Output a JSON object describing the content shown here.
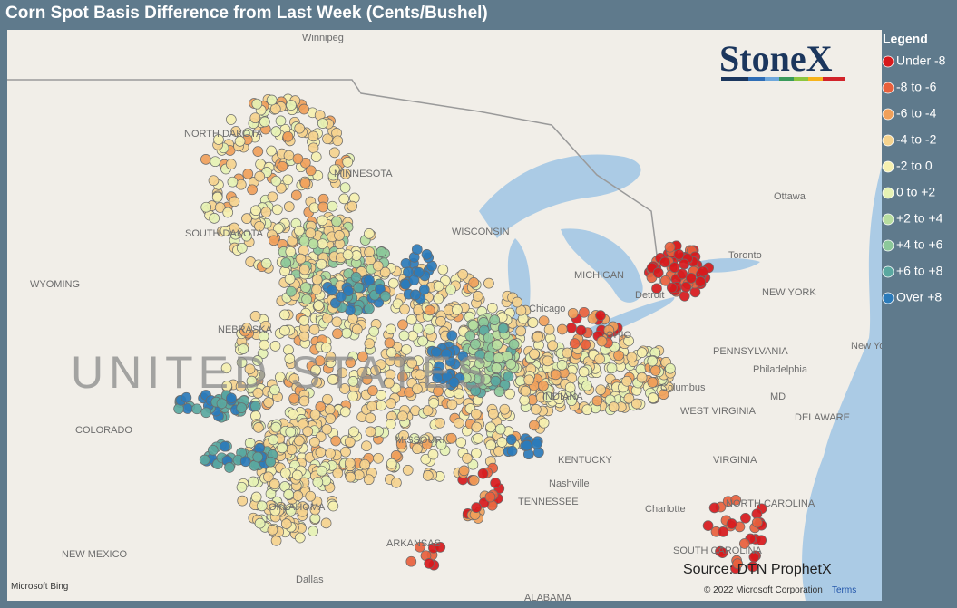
{
  "title": "Corn Spot Basis Difference from Last Week (Cents/Bushel)",
  "legend": {
    "title": "Legend",
    "items": [
      {
        "label": "Under -8",
        "color": "#d7191c"
      },
      {
        "label": "-8 to -6",
        "color": "#e8603c"
      },
      {
        "label": "-6 to -4",
        "color": "#f0a05a"
      },
      {
        "label": "-4 to -2",
        "color": "#f5d38e"
      },
      {
        "label": "-2 to 0",
        "color": "#f5f0b0"
      },
      {
        "label": "0 to +2",
        "color": "#e6f2b4"
      },
      {
        "label": "+2 to +4",
        "color": "#b8dea0"
      },
      {
        "label": "+4 to +6",
        "color": "#8cc89a"
      },
      {
        "label": "+6 to +8",
        "color": "#5aa8a0"
      },
      {
        "label": "Over +8",
        "color": "#2b7bba"
      }
    ]
  },
  "logo": "StoneX",
  "source": "Source: DTN ProphetX",
  "map": {
    "country_label": "UNITED STATES",
    "places": [
      "Winnipeg",
      "NORTH DAKOTA",
      "MINNESOTA",
      "SOUTH DAKOTA",
      "WYOMING",
      "NEBRASKA",
      "COLORADO",
      "MISSOURI",
      "WISCONSIN",
      "MICHIGAN",
      "Chicago",
      "INDIANA",
      "OHIO",
      "Columbus",
      "Detroit",
      "Toronto",
      "Ottawa",
      "NEW YORK",
      "PENNSYLVANIA",
      "New York",
      "Philadelphia",
      "MD",
      "DELAWARE",
      "WEST VIRGINIA",
      "VIRGINIA",
      "KENTUCKY",
      "Nashville",
      "TENNESSEE",
      "NORTH CAROLINA",
      "Charlotte",
      "SOUTH CAROLINA",
      "OKLAHOMA",
      "ARKANSAS",
      "NEW MEXICO",
      "Dallas",
      "ALABAMA"
    ],
    "provider": "Microsoft Bing",
    "copyright": "© 2022 Microsoft Corporation",
    "terms": "Terms"
  }
}
